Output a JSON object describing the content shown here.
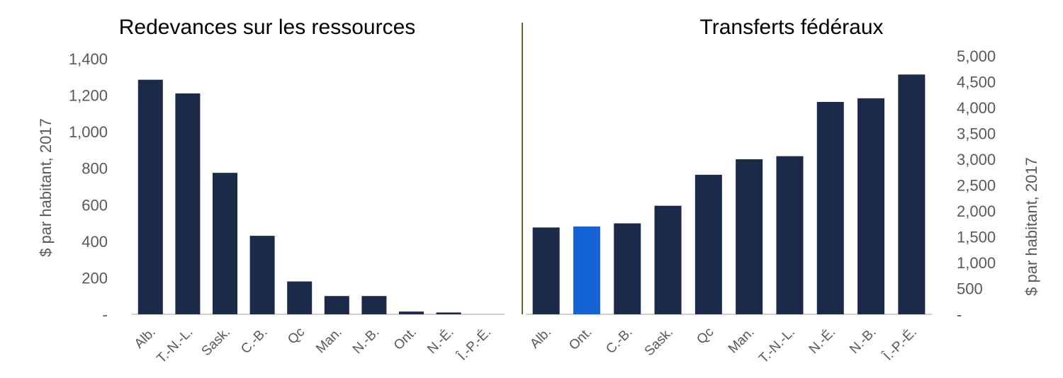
{
  "chart_data": [
    {
      "type": "bar",
      "title": "Redevances sur les ressources",
      "ylabel": "$ par habitant, 2017",
      "ylim": [
        0,
        1400
      ],
      "yticks": [
        0,
        200,
        400,
        600,
        800,
        1000,
        1200,
        1400
      ],
      "ytick_labels": [
        "-",
        "200",
        "400",
        "600",
        "800",
        "1,000",
        "1,200",
        "1,400"
      ],
      "categories": [
        "Alb.",
        "T.-N.-L.",
        "Sask.",
        "C.-B.",
        "Qc",
        "Man.",
        "N.-B.",
        "Ont.",
        "N.-É.",
        "Î.-P.-É."
      ],
      "values": [
        1285,
        1210,
        775,
        430,
        180,
        100,
        100,
        15,
        10,
        0
      ],
      "colors": [
        "#1b2a48",
        "#1b2a48",
        "#1b2a48",
        "#1b2a48",
        "#1b2a48",
        "#1b2a48",
        "#1b2a48",
        "#1b2a48",
        "#1b2a48",
        "#1b2a48"
      ],
      "axis_side": "left",
      "grid": false
    },
    {
      "type": "bar",
      "title": "Transferts fédéraux",
      "ylabel": "$ par habitant, 2017",
      "ylim": [
        0,
        5000
      ],
      "yticks": [
        0,
        500,
        1000,
        1500,
        2000,
        2500,
        3000,
        3500,
        4000,
        4500,
        5000
      ],
      "ytick_labels": [
        "-",
        "500",
        "1,000",
        "1,500",
        "2,000",
        "2,500",
        "3,000",
        "3,500",
        "4,000",
        "4,500",
        "5,000"
      ],
      "categories": [
        "Alb.",
        "Ont.",
        "C.-B.",
        "Sask.",
        "Qc",
        "Man.",
        "T.-N.-L.",
        "N.-É.",
        "N.-B.",
        "Î.-P.-É."
      ],
      "values": [
        1680,
        1700,
        1760,
        2100,
        2700,
        3000,
        3060,
        4110,
        4180,
        4640
      ],
      "colors": [
        "#1b2a48",
        "#1464d8",
        "#1b2a48",
        "#1b2a48",
        "#1b2a48",
        "#1b2a48",
        "#1b2a48",
        "#1b2a48",
        "#1b2a48",
        "#1b2a48"
      ],
      "axis_side": "right",
      "grid": false
    }
  ],
  "colors": {
    "divider": "#5a6b2a",
    "axis": "#d0d0d0",
    "bar": "#1b2a48",
    "highlight": "#1464d8"
  }
}
